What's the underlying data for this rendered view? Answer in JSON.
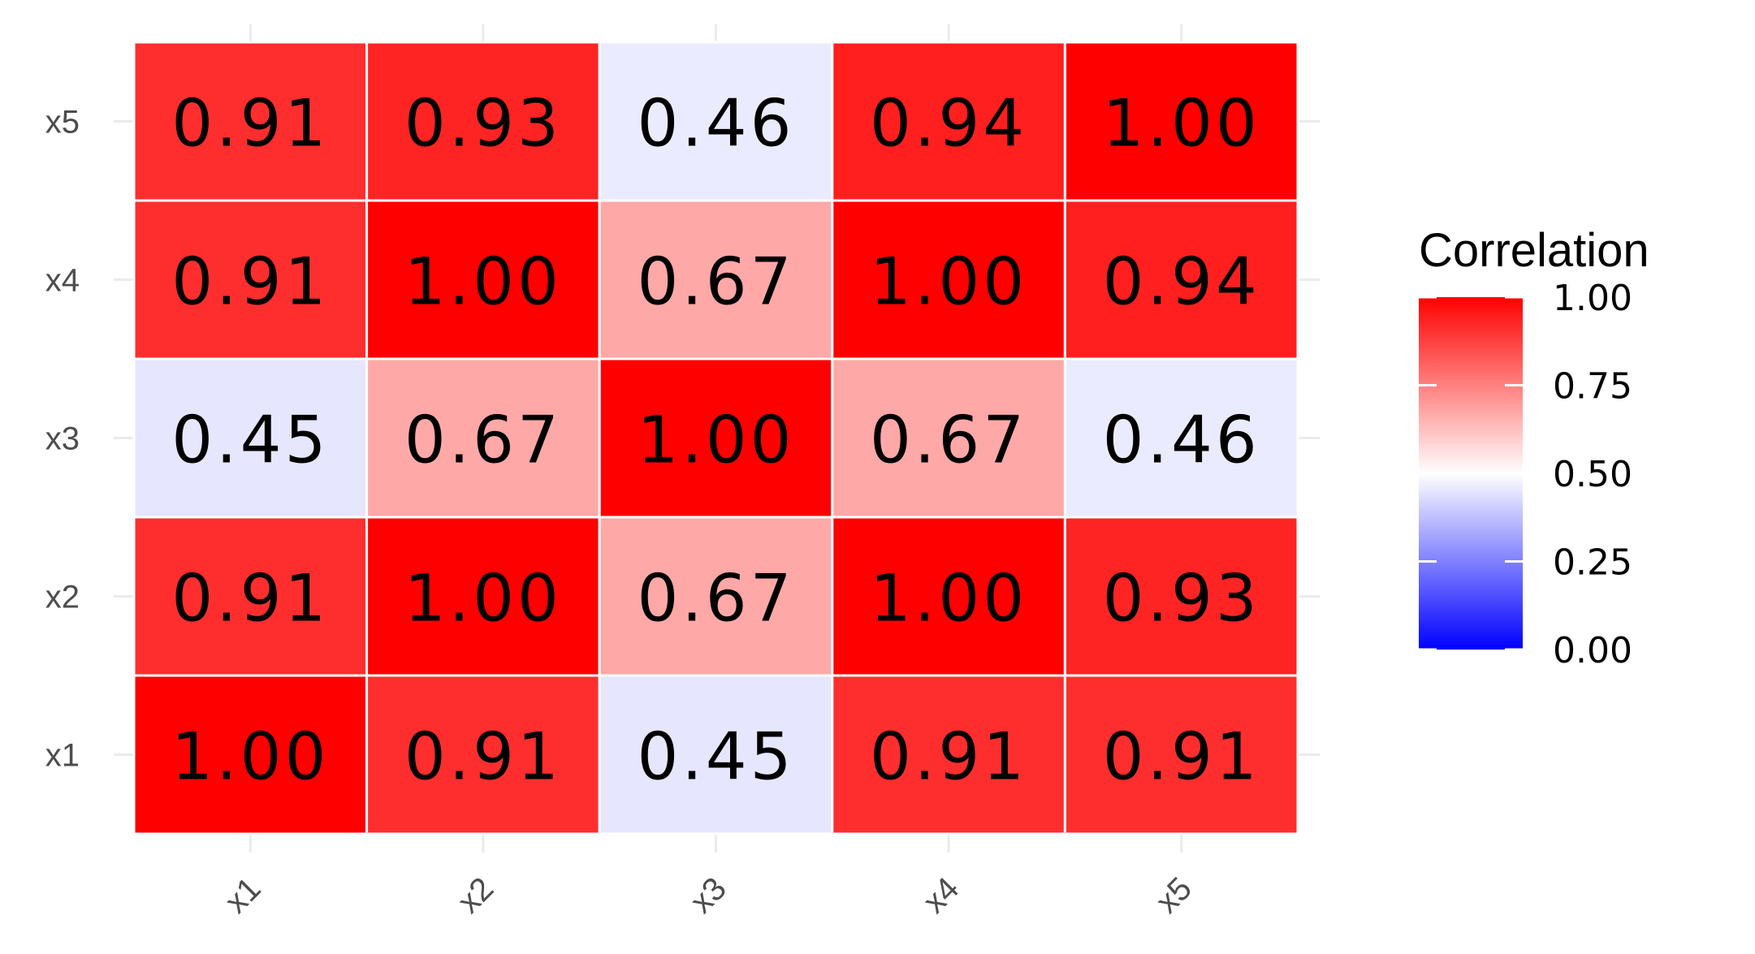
{
  "chart_data": {
    "type": "heatmap",
    "x_categories": [
      "x1",
      "x2",
      "x3",
      "x4",
      "x5"
    ],
    "y_categories": [
      "x1",
      "x2",
      "x3",
      "x4",
      "x5"
    ],
    "values": [
      [
        1.0,
        0.91,
        0.45,
        0.91,
        0.91
      ],
      [
        0.91,
        1.0,
        0.67,
        1.0,
        0.93
      ],
      [
        0.45,
        0.67,
        1.0,
        0.67,
        0.46
      ],
      [
        0.91,
        1.0,
        0.67,
        1.0,
        0.94
      ],
      [
        0.91,
        0.93,
        0.46,
        0.94,
        1.0
      ]
    ],
    "value_labels": [
      [
        "1.00",
        "0.91",
        "0.45",
        "0.91",
        "0.91"
      ],
      [
        "0.91",
        "1.00",
        "0.67",
        "1.00",
        "0.93"
      ],
      [
        "0.45",
        "0.67",
        "1.00",
        "0.67",
        "0.46"
      ],
      [
        "0.91",
        "1.00",
        "0.67",
        "1.00",
        "0.94"
      ],
      [
        "0.91",
        "0.93",
        "0.46",
        "0.94",
        "1.00"
      ]
    ],
    "title": "",
    "xlabel": "",
    "ylabel": "",
    "legend": {
      "title": "Correlation",
      "ticks": [
        "1.00",
        "0.75",
        "0.50",
        "0.25",
        "0.00"
      ],
      "tick_values": [
        1.0,
        0.75,
        0.5,
        0.25,
        0.0
      ],
      "range": [
        0,
        1
      ],
      "placement": "right"
    },
    "color_scale": {
      "low": "#0000ff",
      "mid": "#ffffff",
      "high": "#ff0000",
      "midpoint": 0.5
    },
    "grid": true
  }
}
